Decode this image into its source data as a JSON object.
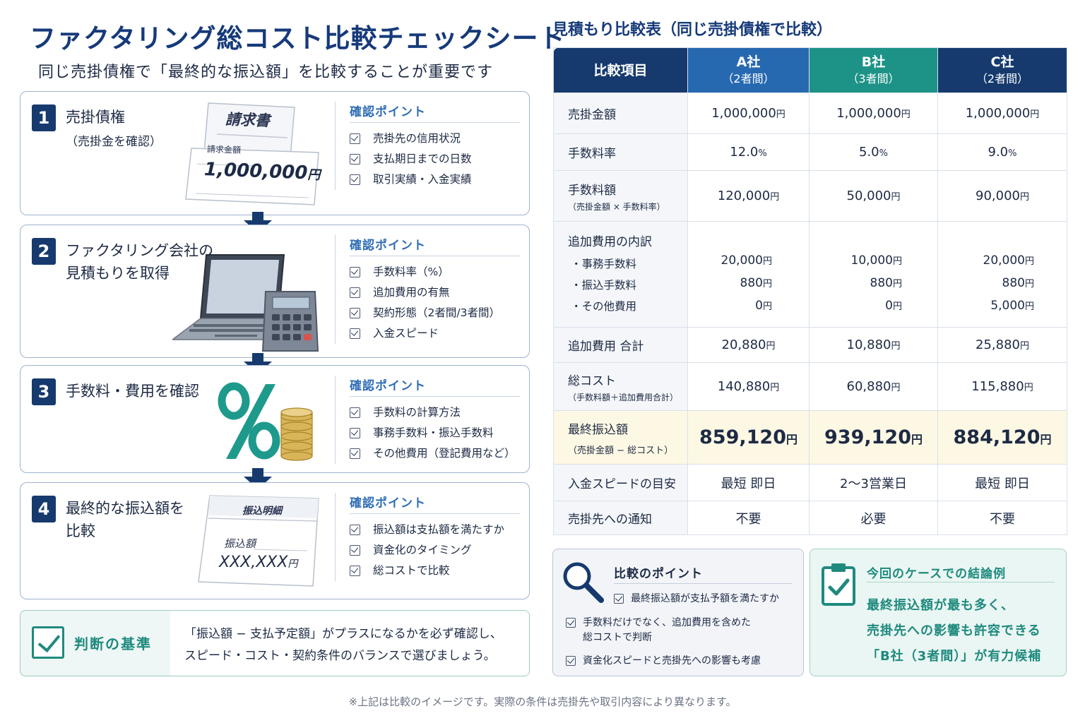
{
  "header": {
    "title": "ファクタリング総コスト比較チェックシート",
    "subtitle": "同じ売掛債権で「最終的な振込額」を比較することが重要です"
  },
  "points_heading": "確認ポイント",
  "steps": [
    {
      "num": "1",
      "title": "売掛債権",
      "sub": "（売掛金を確認）",
      "points": [
        "売掛先の信用状況",
        "支払期日までの日数",
        "取引実績・入金実績"
      ]
    },
    {
      "num": "2",
      "title": "ファクタリング会社の見積もりを取得",
      "title_line1": "ファクタリング会社の",
      "title_line2": "見積もりを取得",
      "points": [
        "手数料率（%）",
        "追加費用の有無",
        "契約形態（2者間/3者間）",
        "入金スピード"
      ]
    },
    {
      "num": "3",
      "title": "手数料・費用を確認",
      "points": [
        "手数料の計算方法",
        "事務手数料・振込手数料",
        "その他費用（登記費用など）"
      ]
    },
    {
      "num": "4",
      "title": "最終的な振込額を比較",
      "title_line1": "最終的な振込額を",
      "title_line2": "比較",
      "points": [
        "振込額は支払額を満たすか",
        "資金化のタイミング",
        "総コストで比較"
      ]
    }
  ],
  "invoice": {
    "title": "請求書",
    "amount_label": "請求金額",
    "amount": "1,000,000",
    "yen": "円"
  },
  "transfer_slip": {
    "title": "振込明細",
    "amount_label": "振込額",
    "amount": "XXX,XXX",
    "yen": "円"
  },
  "criteria": {
    "label": "判断の基準",
    "line1": "「振込額 − 支払予定額」がプラスになるかを必ず確認し、",
    "line2": "スピード・コスト・契約条件のバランスで選びましょう。"
  },
  "footnote": "※上記は比較のイメージです。実際の条件は売掛先や取引内容により異なります。",
  "table": {
    "title": "見積もり比較表（同じ売掛債権で比較）",
    "header_label": "比較項目",
    "companies": [
      {
        "name": "A社",
        "type": "（2者間）"
      },
      {
        "name": "B社",
        "type": "（3者間）"
      },
      {
        "name": "C社",
        "type": "（2者間）"
      }
    ],
    "yen": "円",
    "rows": {
      "receivable": {
        "label": "売掛金額",
        "values": [
          "1,000,000",
          "1,000,000",
          "1,000,000"
        ]
      },
      "fee_rate": {
        "label": "手数料率",
        "values": [
          "12.0",
          "5.0",
          "9.0"
        ],
        "unit": "%"
      },
      "fee_amount": {
        "label": "手数料額",
        "sub": "（売掛金額 × 手数料率）",
        "values": [
          "120,000",
          "50,000",
          "90,000"
        ]
      },
      "extra": {
        "label": "追加費用の内訳",
        "items": [
          "・事務手数料",
          "・振込手数料",
          "・その他費用"
        ],
        "values": [
          [
            "20,000",
            "880",
            "0"
          ],
          [
            "10,000",
            "880",
            "0"
          ],
          [
            "20,000",
            "880",
            "5,000"
          ]
        ]
      },
      "extra_total": {
        "label": "追加費用 合計",
        "values": [
          "20,880",
          "10,880",
          "25,880"
        ]
      },
      "total_cost": {
        "label": "総コスト",
        "sub": "（手数料額＋追加費用合計）",
        "values": [
          "140,880",
          "60,880",
          "115,880"
        ]
      },
      "final": {
        "label": "最終振込額",
        "sub": "（売掛金額 − 総コスト）",
        "values": [
          "859,120",
          "939,120",
          "884,120"
        ]
      },
      "speed": {
        "label": "入金スピードの目安",
        "values": [
          "最短 即日",
          "2〜3営業日",
          "最短 即日"
        ]
      },
      "notice": {
        "label": "売掛先への通知",
        "values": [
          "不要",
          "必要",
          "不要"
        ]
      }
    }
  },
  "comparison_points": {
    "title": "比較のポイント",
    "items": [
      "最終振込額が支払予額を満たすか",
      "手数料だけでなく、追加費用を含めた",
      "総コストで判断",
      "資金化スピードと売掛先への影響も考慮"
    ]
  },
  "conclusion": {
    "title": "今回のケースでの結論例",
    "lines": [
      "最終振込額が最も多く、",
      "売掛先への影響も許容できる",
      "「B社（3者間）」が有力候補"
    ]
  },
  "colors": {
    "navy": "#163a6e",
    "blue": "#2769b0",
    "teal": "#1d9387",
    "final_row_bg": "#fdf8e4"
  }
}
